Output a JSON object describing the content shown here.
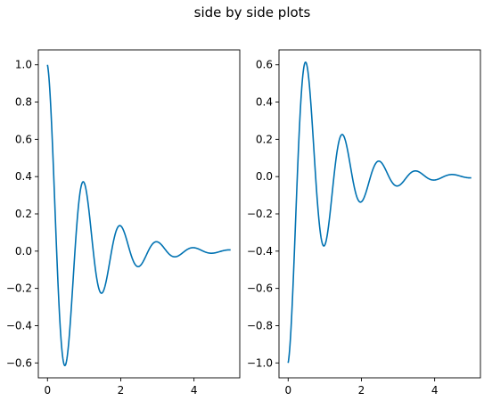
{
  "figure": {
    "suptitle": "side by side plots"
  },
  "chart_data": [
    {
      "type": "line",
      "title": "",
      "xlabel": "",
      "ylabel": "",
      "xlim": [
        -0.25,
        5.25
      ],
      "ylim": [
        -0.68,
        1.08
      ],
      "xticks": [
        0,
        2,
        4
      ],
      "xtick_labels": [
        "0",
        "2",
        "4"
      ],
      "yticks": [
        -0.6,
        -0.4,
        -0.2,
        0.0,
        0.2,
        0.4,
        0.6,
        0.8,
        1.0
      ],
      "ytick_labels": [
        "−0.6",
        "−0.4",
        "−0.2",
        "0.0",
        "0.2",
        "0.4",
        "0.6",
        "0.8",
        "1.0"
      ],
      "grid": false,
      "series": [
        {
          "function": "exp(-t)*cos(2*pi*t)",
          "x_range": [
            0,
            5
          ],
          "samples": 501,
          "color": "#0072b2"
        }
      ]
    },
    {
      "type": "line",
      "title": "",
      "xlabel": "",
      "ylabel": "",
      "xlim": [
        -0.25,
        5.25
      ],
      "ylim": [
        -1.08,
        0.68
      ],
      "xticks": [
        0,
        2,
        4
      ],
      "xtick_labels": [
        "0",
        "2",
        "4"
      ],
      "yticks": [
        -1.0,
        -0.8,
        -0.6,
        -0.4,
        -0.2,
        0.0,
        0.2,
        0.4,
        0.6
      ],
      "ytick_labels": [
        "−1.0",
        "−0.8",
        "−0.6",
        "−0.4",
        "−0.2",
        "0.0",
        "0.2",
        "0.4",
        "0.6"
      ],
      "grid": false,
      "series": [
        {
          "function": "-exp(-t)*cos(2*pi*t)",
          "x_range": [
            0,
            5
          ],
          "samples": 501,
          "color": "#0072b2"
        }
      ]
    }
  ]
}
